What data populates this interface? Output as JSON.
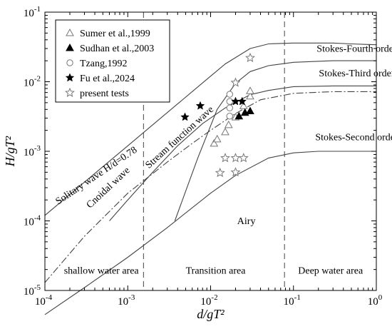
{
  "chart_data": {
    "type": "scatter",
    "x_scale": "log",
    "y_scale": "log",
    "xlim": [
      0.0001,
      1
    ],
    "ylim": [
      1e-05,
      0.1
    ],
    "grid": false,
    "legend_position": "top-left",
    "xlabel": "d/gT²",
    "ylabel": "H/gT²",
    "x_ticks": [
      {
        "value": 0.0001,
        "base": "10",
        "exp": "-4"
      },
      {
        "value": 0.001,
        "base": "10",
        "exp": "-3"
      },
      {
        "value": 0.01,
        "base": "10",
        "exp": "-2"
      },
      {
        "value": 0.1,
        "base": "10",
        "exp": "-1"
      },
      {
        "value": 1,
        "base": "10",
        "exp": "0"
      }
    ],
    "y_ticks": [
      {
        "value": 1e-05,
        "base": "10",
        "exp": "-5"
      },
      {
        "value": 0.0001,
        "base": "10",
        "exp": "-4"
      },
      {
        "value": 0.001,
        "base": "10",
        "exp": "-3"
      },
      {
        "value": 0.01,
        "base": "10",
        "exp": "-2"
      },
      {
        "value": 0.1,
        "base": "10",
        "exp": "-1"
      }
    ],
    "series": [
      {
        "name": "Sumer et al.,1999",
        "marker": "triangle-open",
        "points": [
          [
            0.011,
            0.0013
          ],
          [
            0.012,
            0.0015
          ],
          [
            0.015,
            0.0019
          ],
          [
            0.0165,
            0.0024
          ],
          [
            0.02,
            0.0031
          ],
          [
            0.025,
            0.0045
          ],
          [
            0.03,
            0.0062
          ],
          [
            0.03,
            0.0074
          ]
        ]
      },
      {
        "name": "Sudhan et al.,2003",
        "marker": "triangle-filled",
        "points": [
          [
            0.022,
            0.0032
          ],
          [
            0.026,
            0.0036
          ],
          [
            0.03,
            0.0038
          ]
        ]
      },
      {
        "name": "Tzang,1992",
        "marker": "circle-open",
        "points": [
          [
            0.017,
            0.0066
          ],
          [
            0.017,
            0.0052
          ],
          [
            0.017,
            0.0042
          ],
          [
            0.017,
            0.0032
          ]
        ]
      },
      {
        "name": "Fu et al.,2024",
        "marker": "star-filled",
        "points": [
          [
            0.0049,
            0.0031
          ],
          [
            0.0075,
            0.0045
          ],
          [
            0.02,
            0.0052
          ],
          [
            0.024,
            0.0052
          ]
        ]
      },
      {
        "name": "present tests",
        "marker": "star-open",
        "points": [
          [
            0.013,
            0.00049
          ],
          [
            0.02,
            0.0005
          ],
          [
            0.015,
            0.0008
          ],
          [
            0.02,
            0.0008
          ],
          [
            0.025,
            0.0008
          ],
          [
            0.02,
            0.0097
          ],
          [
            0.03,
            0.022
          ]
        ]
      }
    ],
    "reference_curves": [
      {
        "style": "solid",
        "points": [
          [
            0.0001,
            0.00012
          ],
          [
            0.0002,
            0.00024
          ],
          [
            0.0005,
            0.0006
          ],
          [
            0.001,
            0.0012
          ],
          [
            0.002,
            0.0024
          ],
          [
            0.004,
            0.0048
          ],
          [
            0.008,
            0.0096
          ],
          [
            0.015,
            0.018
          ],
          [
            0.03,
            0.03
          ],
          [
            0.05,
            0.035
          ],
          [
            0.1,
            0.036
          ],
          [
            0.2,
            0.036
          ],
          [
            0.3,
            0.036
          ],
          [
            0.5,
            0.035
          ],
          [
            1,
            0.034
          ]
        ]
      },
      {
        "style": "solid",
        "points": [
          [
            0.0037,
            0.0001
          ],
          [
            0.007,
            0.0008
          ],
          [
            0.012,
            0.004
          ],
          [
            0.02,
            0.0095
          ],
          [
            0.03,
            0.014
          ],
          [
            0.05,
            0.017
          ],
          [
            0.1,
            0.019
          ],
          [
            0.3,
            0.02
          ],
          [
            1,
            0.02
          ]
        ]
      },
      {
        "style": "solid",
        "points": [
          [
            0.0006,
            0.0001
          ],
          [
            0.001,
            0.0002
          ],
          [
            0.002,
            0.0005
          ],
          [
            0.004,
            0.0012
          ],
          [
            0.008,
            0.0025
          ],
          [
            0.015,
            0.0042
          ],
          [
            0.03,
            0.0065
          ],
          [
            0.05,
            0.0075
          ],
          [
            0.1,
            0.0085
          ],
          [
            0.3,
            0.0087
          ],
          [
            1,
            0.0087
          ]
        ]
      },
      {
        "style": "dashdot",
        "points": [
          [
            0.0001,
            1.3e-05
          ],
          [
            0.0003,
            6e-05
          ],
          [
            0.001,
            0.00025
          ],
          [
            0.003,
            0.0007
          ],
          [
            0.006,
            0.0013
          ],
          [
            0.01,
            0.002
          ],
          [
            0.02,
            0.0035
          ],
          [
            0.04,
            0.0055
          ],
          [
            0.1,
            0.0068
          ],
          [
            0.3,
            0.0072
          ],
          [
            1,
            0.0072
          ]
        ]
      },
      {
        "style": "solid",
        "points": [
          [
            0.0001,
            4.5e-06
          ],
          [
            0.0003,
            1.1e-05
          ],
          [
            0.001,
            3e-05
          ],
          [
            0.003,
            8e-05
          ],
          [
            0.01,
            0.00025
          ],
          [
            0.02,
            0.00045
          ],
          [
            0.05,
            0.0008
          ],
          [
            0.1,
            0.00095
          ],
          [
            0.2,
            0.001
          ],
          [
            1,
            0.001
          ]
        ]
      }
    ],
    "boundaries": [
      0.00155,
      0.078
    ],
    "annotations": [
      {
        "text": "Stokes-Fourth order",
        "x": 0.58,
        "y": 0.027
      },
      {
        "text": "Stokes-Third order",
        "x": 0.58,
        "y": 0.012
      },
      {
        "text": "Stokes-Second order",
        "x": 0.58,
        "y": 0.00145
      },
      {
        "text": "Airy",
        "x": 0.027,
        "y": 9e-05
      },
      {
        "text": "shallow water area",
        "x": 0.00048,
        "y": 1.75e-05
      },
      {
        "text": "Transition area",
        "x": 0.0115,
        "y": 1.75e-05
      },
      {
        "text": "Deep water area",
        "x": 0.28,
        "y": 1.75e-05
      },
      {
        "text": "Solitary wave H/d=0.78",
        "x": 0.000145,
        "y": 0.00017,
        "rotate": -34
      },
      {
        "text": "Cnoidal wave",
        "x": 0.00035,
        "y": 0.00015,
        "rotate": -43
      },
      {
        "text": "Stream function wave",
        "x": 0.0018,
        "y": 0.00056,
        "rotate": -42
      }
    ]
  }
}
